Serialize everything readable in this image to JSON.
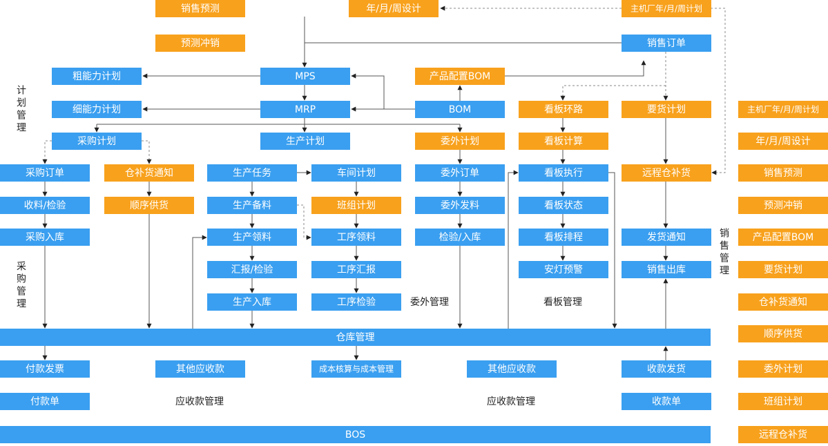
{
  "nodes": [
    "销售预测",
    "年/月/周设计",
    "主机厂年/月/周计划",
    "预测冲销",
    "销售订单",
    "粗能力计划",
    "MPS",
    "产品配置BOM",
    "细能力计划",
    "MRP",
    "BOM",
    "看板环路",
    "要货计划",
    "采购计划",
    "生产计划",
    "委外计划",
    "看板计算",
    "采购订单",
    "仓补货通知",
    "生产任务",
    "车间计划",
    "委外订单",
    "看板执行",
    "远程仓补货",
    "收料/检验",
    "顺序供货",
    "生产备料",
    "班组计划",
    "委外发料",
    "看板状态",
    "采购入库",
    "生产领料",
    "工序领料",
    "检验/入库",
    "看板排程",
    "发货通知",
    "汇报/检验",
    "工序汇报",
    "安灯预警",
    "销售出库",
    "生产入库",
    "工序检验",
    "仓库管理",
    "付款发票",
    "其他应收款",
    "成本核算与成本管理",
    "其他应收款",
    "收款发货",
    "付款单",
    "收款单",
    "BOS"
  ],
  "notes": [
    "委外管理",
    "看板管理",
    "应收款管理",
    "应收款管理"
  ],
  "section_titles": [
    "计划管理",
    "采购管理",
    "销售管理"
  ],
  "legend": [
    "主机厂年/月/周计划",
    "年/月/周设计",
    "销售预测",
    "预测冲销",
    "产品配置BOM",
    "要货计划",
    "仓补货通知",
    "顺序供货",
    "委外计划",
    "班组计划",
    "远程仓补货"
  ]
}
